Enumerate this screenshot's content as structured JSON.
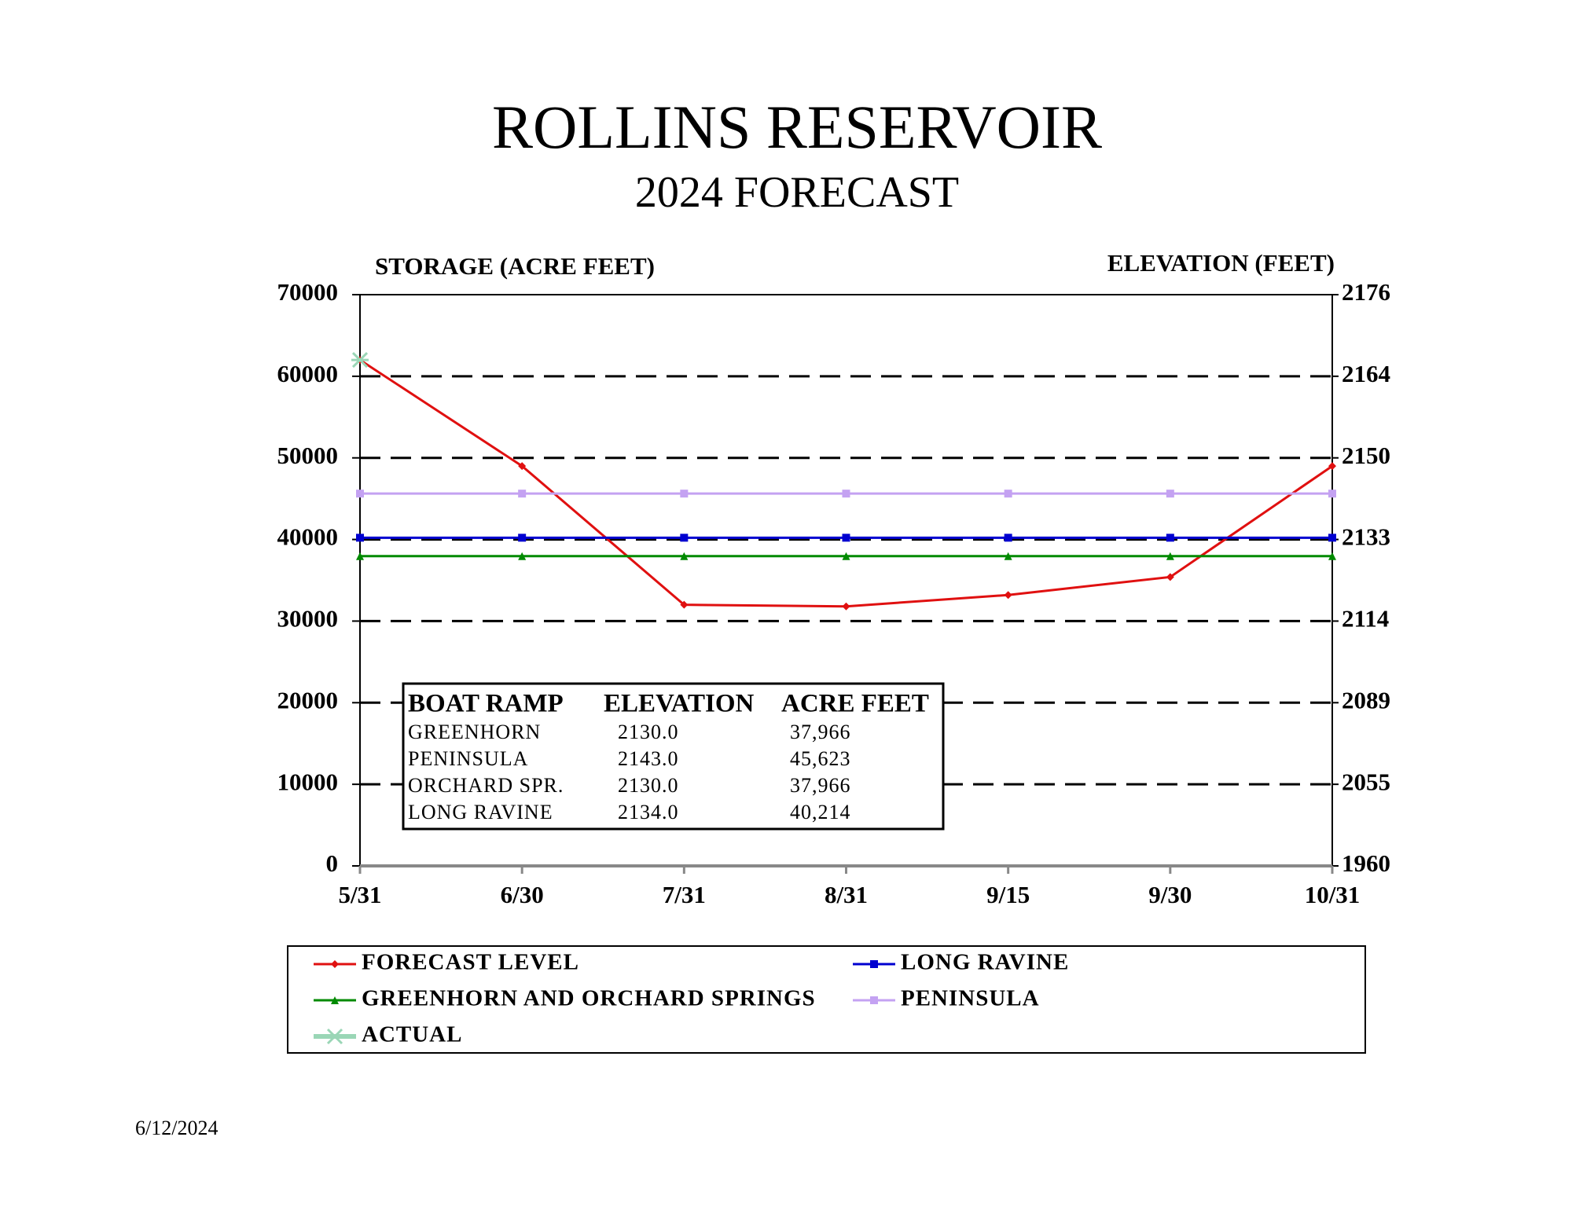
{
  "chart_data": {
    "type": "line",
    "title": "ROLLINS RESERVOIR",
    "subtitle": "2024 FORECAST",
    "y_label": "STORAGE (ACRE FEET)",
    "y2_label": "ELEVATION (FEET)",
    "categories": [
      "5/31",
      "6/30",
      "7/31",
      "8/31",
      "9/15",
      "9/30",
      "10/31"
    ],
    "ylim": [
      0,
      70000
    ],
    "yticks": [
      0,
      10000,
      20000,
      30000,
      40000,
      50000,
      60000,
      70000
    ],
    "y2lim": [
      1960,
      2176
    ],
    "y2ticks": [
      1960,
      2055,
      2089,
      2114,
      2133,
      2150,
      2164,
      2176
    ],
    "grid": "dashed",
    "series": [
      {
        "name": "FORECAST LEVEL",
        "color": "#e01010",
        "marker": "diamond",
        "values": [
          62000,
          49000,
          32000,
          31800,
          33200,
          35400,
          49000
        ]
      },
      {
        "name": "LONG RAVINE",
        "color": "#0000d0",
        "marker": "square",
        "values": [
          40214,
          40214,
          40214,
          40214,
          40214,
          40214,
          40214
        ]
      },
      {
        "name": "GREENHORN AND ORCHARD SPRINGS",
        "color": "#008a00",
        "marker": "triangle",
        "values": [
          37966,
          37966,
          37966,
          37966,
          37966,
          37966,
          37966
        ]
      },
      {
        "name": "PENINSULA",
        "color": "#c4a2f2",
        "marker": "square",
        "values": [
          45623,
          45623,
          45623,
          45623,
          45623,
          45623,
          45623
        ]
      },
      {
        "name": "ACTUAL",
        "color": "#9ad6b6",
        "marker": "asterisk",
        "values": [
          62000,
          null,
          null,
          null,
          null,
          null,
          null
        ]
      }
    ],
    "table": {
      "columns": [
        "BOAT RAMP",
        "ELEVATION",
        "ACRE FEET"
      ],
      "rows": [
        [
          "GREENHORN",
          "2130.0",
          "37,966"
        ],
        [
          "PENINSULA",
          "2143.0",
          "45,623"
        ],
        [
          "ORCHARD SPR.",
          "2130.0",
          "37,966"
        ],
        [
          "LONG RAVINE",
          "2134.0",
          "40,214"
        ]
      ]
    },
    "date": "6/12/2024"
  }
}
